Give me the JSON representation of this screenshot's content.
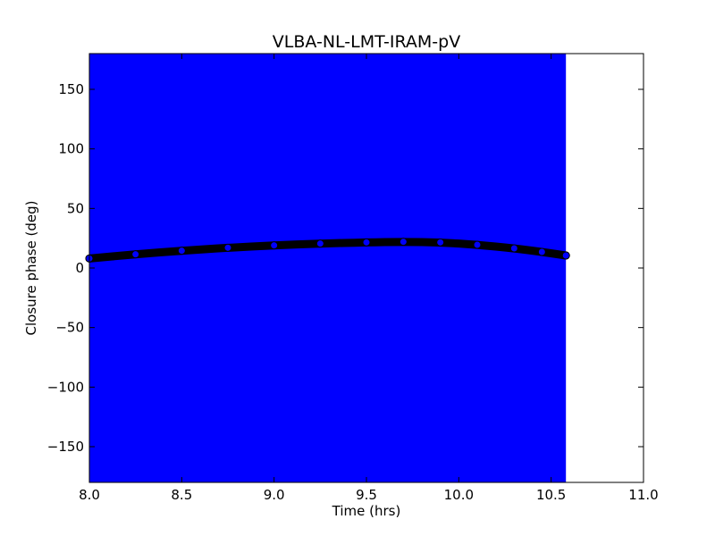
{
  "chart_data": {
    "type": "scatter",
    "title": "VLBA-NL-LMT-IRAM-pV",
    "xlabel": "Time (hrs)",
    "ylabel": "Closure phase (deg)",
    "xlim": [
      8.0,
      11.0
    ],
    "ylim": [
      -180,
      180
    ],
    "xticks": [
      8.0,
      8.5,
      9.0,
      9.5,
      10.0,
      10.5,
      11.0
    ],
    "xtick_labels": [
      "8.0",
      "8.5",
      "9.0",
      "9.5",
      "10.0",
      "10.5",
      "11.0"
    ],
    "yticks": [
      -150,
      -100,
      -50,
      0,
      50,
      100,
      150
    ],
    "ytick_labels": [
      "−150",
      "−100",
      "−50",
      "0",
      "50",
      "100",
      "150"
    ],
    "grid": false,
    "error_band": {
      "x_start": 8.0,
      "x_end": 10.58,
      "y_low": -180,
      "y_high": 180,
      "color": "#0000ff"
    },
    "series": [
      {
        "color": "#000000",
        "marker_face": "#0000ff",
        "x": [
          8.0,
          8.25,
          8.5,
          8.75,
          9.0,
          9.25,
          9.5,
          9.7,
          9.9,
          10.1,
          10.3,
          10.45,
          10.58
        ],
        "y": [
          8,
          11.5,
          14.5,
          17,
          19,
          20.5,
          21.5,
          22,
          21.5,
          19.5,
          16.5,
          13.5,
          10.5
        ]
      }
    ]
  }
}
